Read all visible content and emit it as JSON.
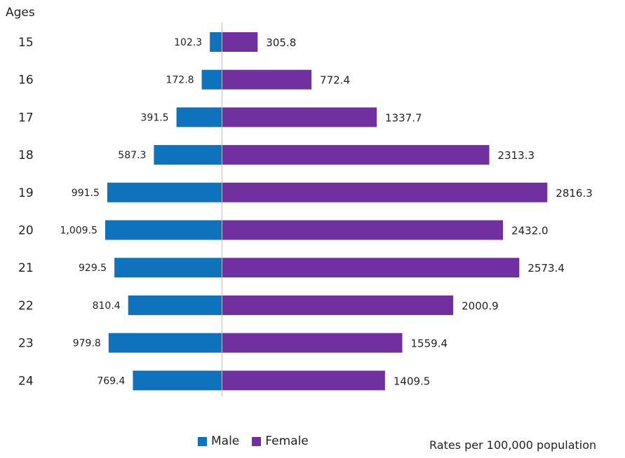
{
  "chart_data": {
    "type": "bar",
    "orientation": "horizontal-diverging",
    "axis_title": "Ages",
    "categories": [
      "15",
      "16",
      "17",
      "18",
      "19",
      "20",
      "21",
      "22",
      "23",
      "24"
    ],
    "series": [
      {
        "name": "Male",
        "color": "#0f72bc",
        "values": [
          102.3,
          172.8,
          391.5,
          587.3,
          991.5,
          1009.5,
          929.5,
          810.4,
          979.8,
          769.4
        ],
        "labels": [
          "102.3",
          "172.8",
          "391.5",
          "587.3",
          "991.5",
          "1,009.5",
          "929.5",
          "810.4",
          "979.8",
          "769.4"
        ]
      },
      {
        "name": "Female",
        "color": "#7130a0",
        "values": [
          305.8,
          772.4,
          1337.7,
          2313.3,
          2816.3,
          2432.0,
          2573.4,
          2000.9,
          1559.4,
          1409.5
        ],
        "labels": [
          "305.8",
          "772.4",
          "1337.7",
          "2313.3",
          "2816.3",
          "2432.0",
          "2573.4",
          "2000.9",
          "1559.4",
          "1409.5"
        ]
      }
    ],
    "legend_position": "bottom-center",
    "note": "Rates per 100,000 population",
    "grid": false
  }
}
